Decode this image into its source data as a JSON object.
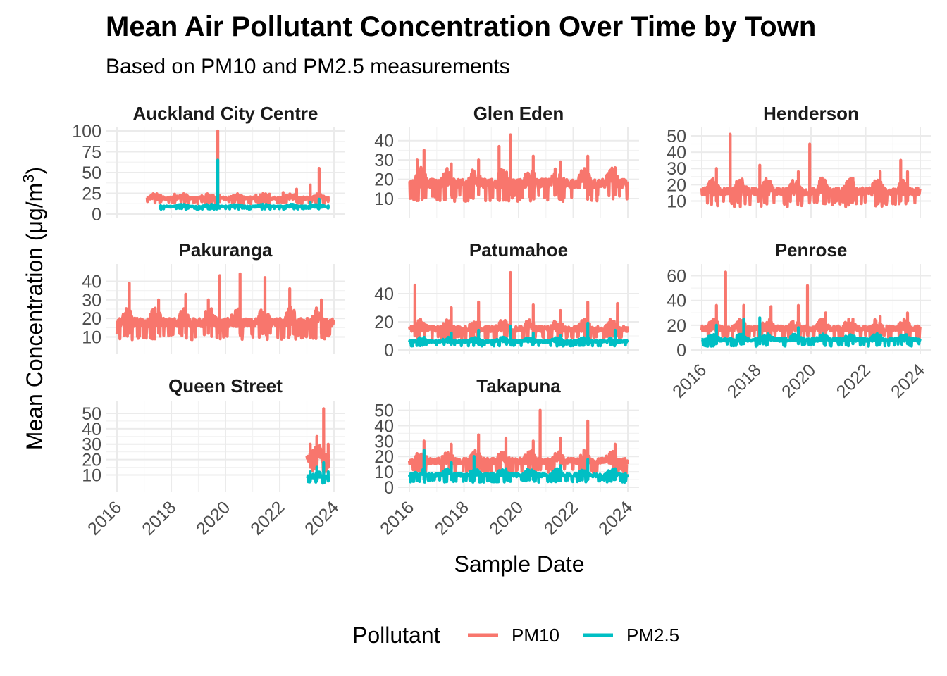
{
  "chart_data": {
    "type": "line",
    "title": "Mean Air Pollutant Concentration Over Time by Town",
    "subtitle": "Based on PM10 and PM2.5 measurements",
    "xlabel": "Sample Date",
    "ylabel": "Mean Concentration (μg/m",
    "ylabel_sup": "3",
    "ylabel_close": ")",
    "xlim": [
      "2016-01-01",
      "2024-01-01"
    ],
    "x_ticks": [
      "2016",
      "2018",
      "2020",
      "2022",
      "2024"
    ],
    "legend": {
      "title": "Pollutant",
      "position": "bottom",
      "entries": [
        {
          "name": "PM10",
          "color": "#F8766D"
        },
        {
          "name": "PM2.5",
          "color": "#00BFC4"
        }
      ]
    },
    "panels": [
      {
        "town": "Auckland City Centre",
        "y_ticks": [
          "0",
          "25",
          "50",
          "75",
          "100"
        ],
        "ylim": [
          0,
          100
        ],
        "series": [
          {
            "name": "PM10",
            "start": "2017-02-01",
            "end": "2023-10-01",
            "x": [
              "2017-02",
              "2017-08",
              "2018-02",
              "2018-08",
              "2019-02",
              "2019-08",
              "2019-09-20",
              "2019-10",
              "2020-02",
              "2020-08",
              "2021-02",
              "2021-08",
              "2022-02",
              "2022-08",
              "2023-02",
              "2023-06",
              "2023-10"
            ],
            "y": [
              18,
              22,
              24,
              21,
              22,
              20,
              100,
              22,
              20,
              21,
              23,
              24,
              26,
              30,
              35,
              55,
              20
            ],
            "baseline": 15,
            "amplitude": 10
          },
          {
            "name": "PM2.5",
            "start": "2017-08-01",
            "end": "2023-10-01",
            "x": [
              "2017-08",
              "2018-08",
              "2019-08",
              "2019-09-20",
              "2019-10",
              "2020-08",
              "2021-08",
              "2022-08",
              "2023-02",
              "2023-06",
              "2023-10"
            ],
            "y": [
              8,
              9,
              8,
              65,
              9,
              8,
              9,
              10,
              14,
              18,
              10
            ],
            "baseline": 7,
            "amplitude": 5
          }
        ]
      },
      {
        "town": "Glen Eden",
        "y_ticks": [
          "10",
          "20",
          "30",
          "40"
        ],
        "ylim": [
          2,
          45
        ],
        "series": [
          {
            "name": "PM10",
            "start": "2016-01-01",
            "end": "2024-01-01",
            "x": [
              "2016-04",
              "2016-07",
              "2017-07",
              "2018-07",
              "2019-04",
              "2019-09",
              "2020-07",
              "2021-07",
              "2022-07",
              "2023-07"
            ],
            "y": [
              30,
              35,
              28,
              30,
              37,
              43,
              32,
              29,
              32,
              26
            ],
            "baseline": 12,
            "amplitude": 14
          }
        ]
      },
      {
        "town": "Henderson",
        "y_ticks": [
          "10",
          "20",
          "30",
          "40",
          "50"
        ],
        "ylim": [
          2,
          53
        ],
        "series": [
          {
            "name": "PM10",
            "start": "2016-01-01",
            "end": "2024-01-01",
            "x": [
              "2016-07",
              "2017-01",
              "2018-02",
              "2019-07",
              "2019-12",
              "2020-07",
              "2021-07",
              "2022-07",
              "2023-04",
              "2023-07"
            ],
            "y": [
              30,
              51,
              32,
              28,
              45,
              22,
              24,
              28,
              35,
              28
            ],
            "baseline": 10,
            "amplitude": 14
          }
        ]
      },
      {
        "town": "Pakuranga",
        "y_ticks": [
          "10",
          "20",
          "30",
          "40"
        ],
        "ylim": [
          3,
          47
        ],
        "series": [
          {
            "name": "PM10",
            "start": "2016-01-01",
            "end": "2024-01-01",
            "x": [
              "2016-06",
              "2017-07",
              "2018-07",
              "2019-05",
              "2019-10",
              "2020-07",
              "2021-06",
              "2022-05",
              "2023-07"
            ],
            "y": [
              39,
              30,
              33,
              30,
              43,
              44,
              42,
              36,
              30
            ],
            "baseline": 12,
            "amplitude": 14
          }
        ]
      },
      {
        "town": "Patumahoe",
        "y_ticks": [
          "0",
          "20",
          "40"
        ],
        "ylim": [
          0,
          58
        ],
        "series": [
          {
            "name": "PM10",
            "start": "2016-01-01",
            "end": "2024-01-01",
            "x": [
              "2016-03",
              "2017-07",
              "2018-07",
              "2019-09",
              "2020-07",
              "2021-07",
              "2022-07",
              "2023-08"
            ],
            "y": [
              46,
              30,
              34,
              55,
              32,
              28,
              34,
              33
            ],
            "baseline": 10,
            "amplitude": 12
          },
          {
            "name": "PM2.5",
            "start": "2016-01-01",
            "end": "2024-01-01",
            "x": [
              "2016-07",
              "2017-07",
              "2018-07",
              "2019-09",
              "2020-07",
              "2021-07",
              "2022-07",
              "2023-07"
            ],
            "y": [
              9,
              12,
              14,
              17,
              12,
              10,
              19,
              14
            ],
            "baseline": 4,
            "amplitude": 5
          }
        ]
      },
      {
        "town": "Penrose",
        "y_ticks": [
          "0",
          "20",
          "40",
          "60"
        ],
        "ylim": [
          0,
          66
        ],
        "series": [
          {
            "name": "PM10",
            "start": "2016-01-01",
            "end": "2024-01-01",
            "x": [
              "2016-07",
              "2016-11",
              "2017-07",
              "2018-07",
              "2019-07",
              "2019-11",
              "2020-07",
              "2021-07",
              "2022-07",
              "2023-07"
            ],
            "y": [
              36,
              63,
              36,
              35,
              36,
              52,
              30,
              25,
              27,
              30
            ],
            "baseline": 12,
            "amplitude": 13
          },
          {
            "name": "PM2.5",
            "start": "2016-01-01",
            "end": "2024-01-01",
            "x": [
              "2016-07",
              "2017-07",
              "2018-02",
              "2019-07",
              "2020-07",
              "2021-07",
              "2022-07",
              "2023-07"
            ],
            "y": [
              20,
              25,
              26,
              18,
              12,
              10,
              12,
              10
            ],
            "baseline": 5,
            "amplitude": 8
          }
        ]
      },
      {
        "town": "Queen Street",
        "y_ticks": [
          "10",
          "20",
          "30",
          "40",
          "50"
        ],
        "ylim": [
          2,
          55
        ],
        "series": [
          {
            "name": "PM10",
            "start": "2023-01-01",
            "end": "2023-11-01",
            "x": [
              "2023-02",
              "2023-05",
              "2023-08",
              "2023-10"
            ],
            "y": [
              30,
              35,
              53,
              30
            ],
            "baseline": 15,
            "amplitude": 15
          },
          {
            "name": "PM2.5",
            "start": "2023-01-01",
            "end": "2023-11-01",
            "x": [
              "2023-02",
              "2023-05",
              "2023-08",
              "2023-10"
            ],
            "y": [
              12,
              15,
              18,
              12
            ],
            "baseline": 6,
            "amplitude": 6
          }
        ]
      },
      {
        "town": "Takapuna",
        "y_ticks": [
          "0",
          "10",
          "20",
          "30",
          "40",
          "50"
        ],
        "ylim": [
          0,
          53
        ],
        "series": [
          {
            "name": "PM10",
            "start": "2016-01-01",
            "end": "2024-01-01",
            "x": [
              "2016-07",
              "2017-07",
              "2018-07",
              "2019-07",
              "2020-07",
              "2020-10",
              "2021-07",
              "2022-07",
              "2023-07"
            ],
            "y": [
              30,
              28,
              34,
              32,
              30,
              50,
              32,
              43,
              28
            ],
            "baseline": 12,
            "amplitude": 12
          },
          {
            "name": "PM2.5",
            "start": "2016-01-01",
            "end": "2024-01-01",
            "x": [
              "2016-07",
              "2017-07",
              "2018-05",
              "2019-07",
              "2020-07",
              "2021-07",
              "2022-07",
              "2023-07"
            ],
            "y": [
              24,
              16,
              20,
              12,
              10,
              14,
              18,
              12
            ],
            "baseline": 5,
            "amplitude": 7
          }
        ]
      }
    ]
  }
}
